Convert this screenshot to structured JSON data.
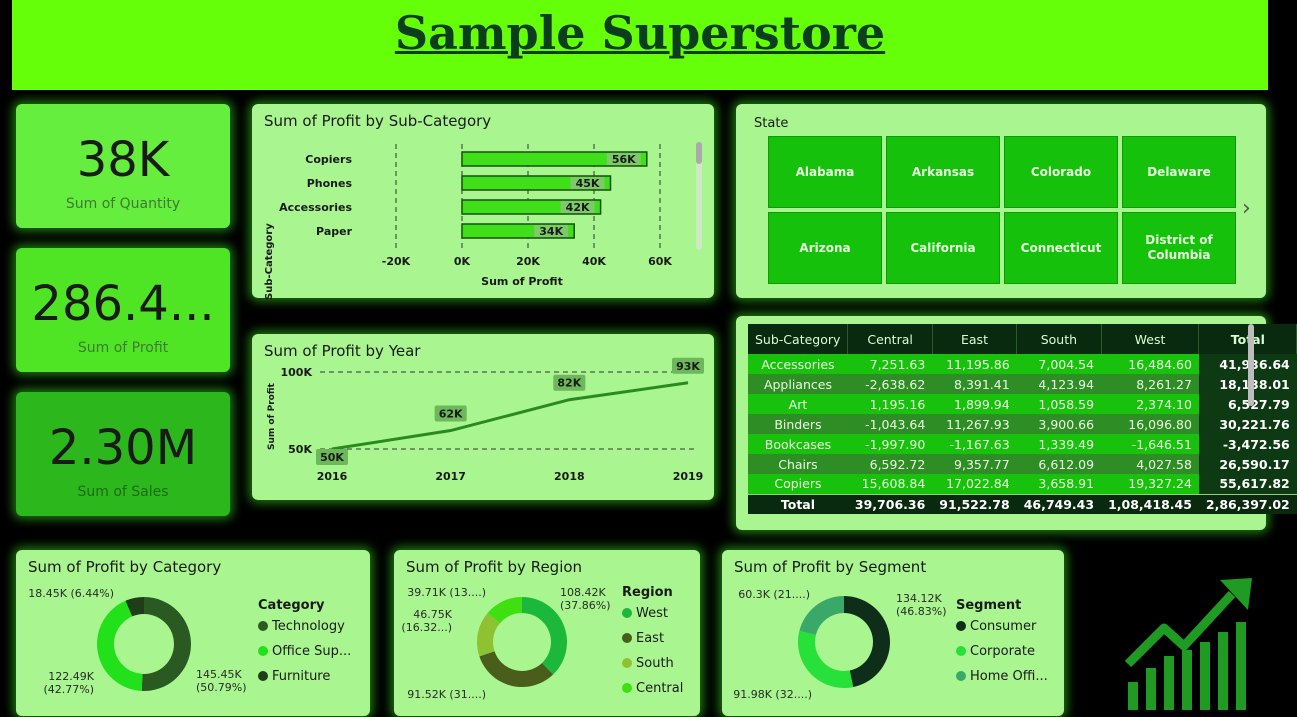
{
  "title": "Sample Superstore",
  "kpis": [
    {
      "value": "38K",
      "label": "Sum of Quantity"
    },
    {
      "value": "286.4...",
      "label": "Sum of Profit"
    },
    {
      "value": "2.30M",
      "label": "Sum of Sales"
    }
  ],
  "subcat_chart": {
    "title": "Sum of Profit by Sub-Category",
    "xlabel": "Sum of Profit",
    "ylabel": "Sub-Category",
    "chart_data": {
      "type": "bar",
      "categories": [
        "Copiers",
        "Phones",
        "Accessories",
        "Paper"
      ],
      "values": [
        56,
        45,
        42,
        34
      ],
      "labels": [
        "56K",
        "45K",
        "42K",
        "34K"
      ],
      "ticks": [
        "-20K",
        "0K",
        "20K",
        "40K",
        "60K"
      ],
      "xlim": [
        -20,
        60
      ]
    }
  },
  "year_chart": {
    "title": "Sum of Profit by Year",
    "ylabel": "Sum of Profit",
    "chart_data": {
      "type": "line",
      "x": [
        "2016",
        "2017",
        "2018",
        "2019"
      ],
      "values": [
        50,
        62,
        82,
        93
      ],
      "labels": [
        "50K",
        "62K",
        "82K",
        "93K"
      ],
      "yticks": [
        "100K",
        "50K"
      ]
    }
  },
  "state_slicer": {
    "label": "State",
    "tiles": [
      "Alabama",
      "Arkansas",
      "Colorado",
      "Delaware",
      "Arizona",
      "California",
      "Connecticut",
      "District of Columbia"
    ],
    "next_icon": "›"
  },
  "matrix": {
    "headers": [
      "Sub-Category",
      "Central",
      "East",
      "South",
      "West",
      "Total"
    ],
    "rows": [
      [
        "Accessories",
        "7,251.63",
        "11,195.86",
        "7,004.54",
        "16,484.60",
        "41,936.64"
      ],
      [
        "Appliances",
        "-2,638.62",
        "8,391.41",
        "4,123.94",
        "8,261.27",
        "18,138.01"
      ],
      [
        "Art",
        "1,195.16",
        "1,899.94",
        "1,058.59",
        "2,374.10",
        "6,527.79"
      ],
      [
        "Binders",
        "-1,043.64",
        "11,267.93",
        "3,900.66",
        "16,096.80",
        "30,221.76"
      ],
      [
        "Bookcases",
        "-1,997.90",
        "-1,167.63",
        "1,339.49",
        "-1,646.51",
        "-3,472.56"
      ],
      [
        "Chairs",
        "6,592.72",
        "9,357.77",
        "6,612.09",
        "4,027.58",
        "26,590.17"
      ],
      [
        "Copiers",
        "15,608.84",
        "17,022.84",
        "3,658.91",
        "19,327.24",
        "55,617.82"
      ]
    ],
    "total": [
      "Total",
      "39,706.36",
      "91,522.78",
      "46,749.43",
      "1,08,418.45",
      "2,86,397.02"
    ]
  },
  "category_donut": {
    "title": "Sum of Profit by Category",
    "legend_title": "Category",
    "chart_data": {
      "type": "pie",
      "categories": [
        "Technology",
        "Office Sup...",
        "Furniture"
      ],
      "values": [
        145.45,
        122.49,
        18.45
      ],
      "colors": [
        "#2a5a22",
        "#22e01a",
        "#1f3d18"
      ],
      "labels": [
        "145.45K\n(50.79%)",
        "122.49K\n(42.77%)",
        "18.45K (6.44%)"
      ]
    }
  },
  "region_donut": {
    "title": "Sum of Profit by Region",
    "legend_title": "Region",
    "chart_data": {
      "type": "pie",
      "categories": [
        "West",
        "East",
        "South",
        "Central"
      ],
      "values": [
        108.42,
        91.52,
        46.75,
        39.71
      ],
      "colors": [
        "#1cb83c",
        "#4a5e1c",
        "#8fc232",
        "#3fe012"
      ],
      "labels": [
        "108.42K\n(37.86%)",
        "91.52K (31....)",
        "46.75K\n(16.32...)",
        "39.71K (13....)"
      ]
    }
  },
  "segment_donut": {
    "title": "Sum of Profit by Segment",
    "legend_title": "Segment",
    "chart_data": {
      "type": "pie",
      "categories": [
        "Consumer",
        "Corporate",
        "Home Offi..."
      ],
      "values": [
        134.12,
        91.98,
        60.3
      ],
      "colors": [
        "#0e2e1a",
        "#27e03a",
        "#3aa868"
      ],
      "labels": [
        "134.12K\n(46.83%)",
        "91.98K (32....)",
        "60.3K (21....)"
      ]
    }
  }
}
